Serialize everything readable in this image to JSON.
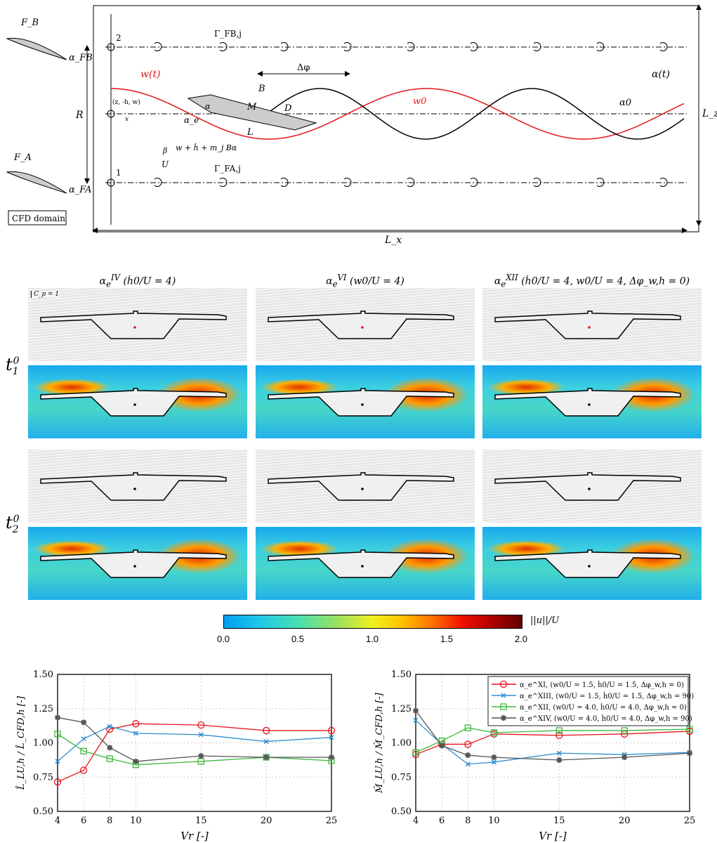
{
  "diagram": {
    "labels": {
      "FB": "F_B",
      "FA": "F_A",
      "alphaFB": "α_FB",
      "alphaFA": "α_FA",
      "R": "R",
      "cfd": "CFD domain",
      "node2": "2",
      "node1": "1",
      "gammaB": "Γ_FB,j",
      "gammaA": "Γ_FA,j",
      "wt": "w(t)",
      "alphat": "α(t)",
      "dphi": "Δφ",
      "B": "B",
      "M": "M",
      "D": "D",
      "L": "L",
      "w0": "w0",
      "alpha0": "α0",
      "alpha": "α",
      "alphae": "α_e",
      "beta": "β",
      "U": "U",
      "zhw": "(z, -h, w)",
      "x": "x",
      "eff": "w + ḣ + m_j Bα",
      "Lz": "L_z",
      "Lx": "L_x"
    },
    "colors": {
      "red": "#e8141c",
      "black": "#000000"
    }
  },
  "panels": {
    "columns": [
      {
        "main": "α",
        "sup": "IV",
        "sub": "e",
        "cond": " (ḣ0/U = 4)"
      },
      {
        "main": "α",
        "sup": "VI",
        "sub": "e",
        "cond": " (w0/U = 4)"
      },
      {
        "main": "α",
        "sup": "XII",
        "sub": "e",
        "cond": " (ḣ0/U = 4, w0/U = 4, Δφ_w,h = 0)"
      }
    ],
    "rows": [
      {
        "main": "t",
        "sub": "1",
        "sup": "0"
      },
      {
        "main": "t",
        "sub": "2",
        "sup": "0"
      }
    ],
    "cp_scale": "C_p = 1"
  },
  "colorbar": {
    "label": "||u||/U",
    "ticks": [
      "0.0",
      "0.5",
      "1.0",
      "1.5",
      "2.0"
    ]
  },
  "chart_data": [
    {
      "type": "line",
      "xlabel": "Vr [-]",
      "ylabel": "L̂_LU,h / L̂_CFD,h [-]",
      "ylim": [
        0.5,
        1.5
      ],
      "yticks": [
        "0.50",
        "0.75",
        "1.00",
        "1.25",
        "1.50"
      ],
      "x": [
        4,
        6,
        8,
        10,
        15,
        20,
        25
      ],
      "grid": true,
      "series": [
        {
          "name": "α_e^XI, (w0/U = 1.5, ḣ0/U = 1.5, Δφ_w,h = 0)",
          "color": "#e8141c",
          "marker": "circle",
          "values": [
            0.715,
            0.8,
            1.1,
            1.14,
            1.13,
            1.09,
            1.09
          ]
        },
        {
          "name": "α_e^XIII, (w0/U = 1.5, ḣ0/U = 1.5, Δφ_w,h = 90)",
          "color": "#2f8fd0",
          "marker": "x",
          "values": [
            0.865,
            1.03,
            1.12,
            1.07,
            1.06,
            1.01,
            1.04
          ]
        },
        {
          "name": "α_e^XII, (w0/U = 4.0, ḣ0/U = 4.0, Δφ_w,h = 0)",
          "color": "#3cb83c",
          "marker": "square",
          "values": [
            1.065,
            0.94,
            0.885,
            0.84,
            0.865,
            0.895,
            0.87
          ]
        },
        {
          "name": "α_e^XIV, (w0/U = 4.0, ḣ0/U = 4.0, Δφ_w,h = 90)",
          "color": "#555555",
          "marker": "star",
          "values": [
            1.185,
            1.15,
            0.965,
            0.865,
            0.905,
            0.895,
            0.895
          ]
        }
      ]
    },
    {
      "type": "line",
      "xlabel": "Vr [-]",
      "ylabel": "M̂_LU,h / M̂_CFD,h [-]",
      "ylim": [
        0.5,
        1.5
      ],
      "yticks": [
        "0.50",
        "0.75",
        "1.00",
        "1.25",
        "1.50"
      ],
      "x": [
        4,
        6,
        8,
        10,
        15,
        20,
        25
      ],
      "grid": true,
      "legend": "top-right",
      "series": [
        {
          "name": "α_e^XI, (w0/U = 1.5, ḣ0/U = 1.5, Δφ_w,h = 0)",
          "color": "#e8141c",
          "marker": "circle",
          "values": [
            0.915,
            0.99,
            0.99,
            1.065,
            1.055,
            1.065,
            1.085
          ]
        },
        {
          "name": "α_e^XIII, (w0/U = 1.5, ḣ0/U = 1.5, Δφ_w,h = 90)",
          "color": "#2f8fd0",
          "marker": "x",
          "values": [
            1.165,
            0.99,
            0.845,
            0.86,
            0.925,
            0.915,
            0.93
          ]
        },
        {
          "name": "α_e^XII, (w0/U = 4.0, ḣ0/U = 4.0, Δφ_w,h = 0)",
          "color": "#3cb83c",
          "marker": "square",
          "values": [
            0.93,
            1.015,
            1.11,
            1.075,
            1.09,
            1.09,
            1.1
          ]
        },
        {
          "name": "α_e^XIV, (w0/U = 4.0, ḣ0/U = 4.0, Δφ_w,h = 90)",
          "color": "#555555",
          "marker": "star",
          "values": [
            1.235,
            0.98,
            0.91,
            0.895,
            0.875,
            0.895,
            0.925
          ]
        }
      ]
    }
  ]
}
